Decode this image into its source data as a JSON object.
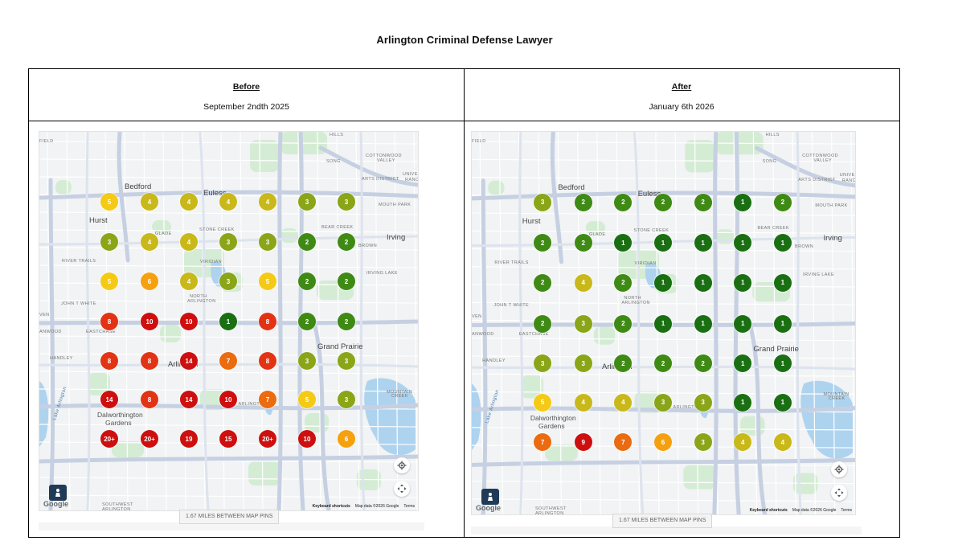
{
  "title": "Arlington Criminal Defense Lawyer",
  "colors": {
    "pin_1": "#1a6f12",
    "pin_2": "#3f8a14",
    "pin_3": "#8aa517",
    "pin_4": "#c9b81a",
    "pin_5": "#f4ca17",
    "pin_6": "#f5a00f",
    "pin_7": "#ea6b10",
    "pin_8": "#e23315",
    "pin_hi": "#cd0f0f"
  },
  "columns": [
    {
      "heading": "Before",
      "date": "September 2ndth 2025",
      "grid": [
        [
          "5",
          "4",
          "4",
          "4",
          "4",
          "3",
          "3"
        ],
        [
          "3",
          "4",
          "4",
          "3",
          "3",
          "2",
          "2"
        ],
        [
          "5",
          "6",
          "4",
          "3",
          "5",
          "2",
          "2"
        ],
        [
          "8",
          "10",
          "10",
          "1",
          "8",
          "2",
          "2"
        ],
        [
          "8",
          "8",
          "14",
          "7",
          "8",
          "3",
          "3"
        ],
        [
          "14",
          "8",
          "14",
          "10",
          "7",
          "5",
          "3"
        ],
        [
          "20+",
          "20+",
          "19",
          "15",
          "20+",
          "10",
          "6"
        ]
      ],
      "miles_label": "1.67 MILES BETWEEN MAP PINS",
      "attribution": {
        "shortcuts": "Keyboard shortcuts",
        "data": "Map data ©2026 Google",
        "terms": "Terms"
      },
      "logo": "Google"
    },
    {
      "heading": "After",
      "date": "January 6th 2026",
      "grid": [
        [
          "3",
          "2",
          "2",
          "2",
          "2",
          "1",
          "2"
        ],
        [
          "2",
          "2",
          "1",
          "1",
          "1",
          "1",
          "1"
        ],
        [
          "2",
          "4",
          "2",
          "1",
          "1",
          "1",
          "1"
        ],
        [
          "2",
          "3",
          "2",
          "1",
          "1",
          "1",
          "1"
        ],
        [
          "3",
          "3",
          "2",
          "2",
          "2",
          "1",
          "1"
        ],
        [
          "5",
          "4",
          "4",
          "3",
          "3",
          "1",
          "1"
        ],
        [
          "7",
          "9",
          "7",
          "6",
          "3",
          "4",
          "4"
        ]
      ],
      "miles_label": "1.67 MILES BETWEEN MAP PINS",
      "attribution": {
        "shortcuts": "Keyboard shortcuts",
        "data": "Map data ©2026 Google",
        "terms": "Terms"
      },
      "logo": "Google"
    }
  ],
  "map_labels": {
    "bedford": "Bedford",
    "euless": "Euless",
    "hurst": "Hurst",
    "irving": "Irving",
    "arlington": "Arlington",
    "grand_prairie": "Grand Prairie",
    "dalworthington": "Dalworthington",
    "gardens": "Gardens",
    "lake_arlington": "Lake Arlington",
    "song": "SONG",
    "cottonwood": "COTTONWOOD",
    "valley": "VALLEY",
    "arts_district": "ARTS DISTRICT",
    "univ": "UNIVE",
    "ranch": "RANCH",
    "hills": "HILLS",
    "field": "FIELD",
    "mouth_park": "MOUTH PARK",
    "bear_creek": "BEAR CREEK",
    "brown": "BROWN",
    "stone_creek": "STONE CREEK",
    "glade": "GLADE",
    "river_trails": "RIVER TRAILS",
    "viridian": "VIRIDIAN",
    "irving_lake": "IRVING LAKE",
    "john_t_white": "JOHN T WHITE",
    "north": "NORTH",
    "arlington_sm": "ARLINGTON",
    "eastchase": "EASTCHASE",
    "anwood": "ANWOOD",
    "handley": "HANDLEY",
    "mountain": "MOUNTAIN",
    "creek": "CREEK",
    "southwest": "SOUTHWEST",
    "sw_arlington": "ARLINGTON",
    "ven": "VEN",
    "east_arlington": "EAST ARLINGTON"
  }
}
